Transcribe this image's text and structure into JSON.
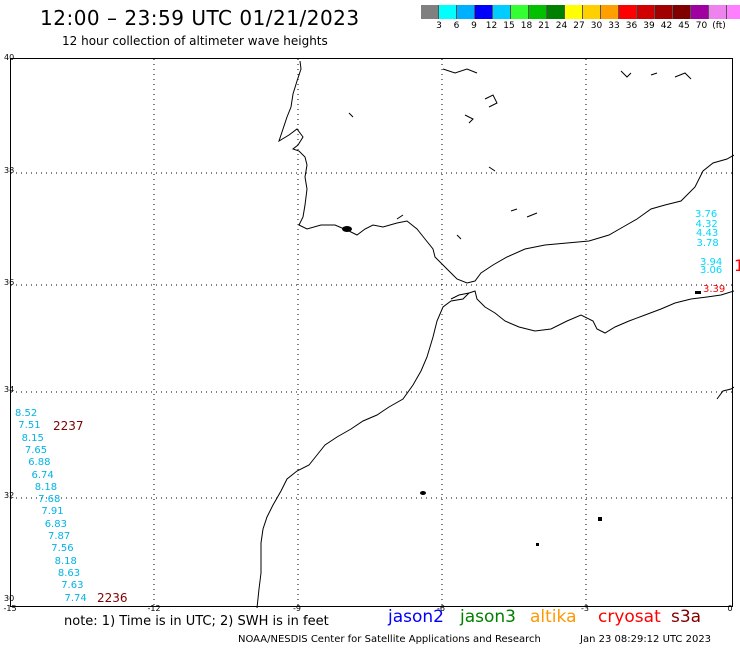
{
  "header": {
    "title": "12:00 – 23:59 UTC 01/21/2023",
    "subtitle": "12 hour collection of altimeter wave heights"
  },
  "legend": {
    "colors": [
      "#808080",
      "#00ffff",
      "#00b0ff",
      "#0000ff",
      "#00ccff",
      "#33ff33",
      "#00c000",
      "#008000",
      "#ffff00",
      "#ffd000",
      "#ffa000",
      "#ff0000",
      "#d00000",
      "#a00000",
      "#800000",
      "#a000a0",
      "#ee82ee",
      "#ff80ff",
      "#000000"
    ],
    "labels": [
      "3",
      "6",
      "9",
      "12",
      "15",
      "18",
      "21",
      "24",
      "27",
      "30",
      "33",
      "36",
      "39",
      "42",
      "45",
      "70",
      "(ft)"
    ]
  },
  "axes": {
    "lat_labels": [
      "40",
      "38",
      "36",
      "34",
      "32",
      "30"
    ],
    "lon_labels": [
      "-15",
      "-12",
      "-9",
      "-6",
      "-3",
      "0"
    ]
  },
  "tracks": {
    "west_values": [
      "8.52",
      "7.51",
      "8.15",
      "7.65",
      "6.88",
      "6.74",
      "8.18",
      "7.68",
      "7.91",
      "6.83",
      "7.87",
      "7.56",
      "8.18",
      "8.63",
      "7.63",
      "7.74"
    ],
    "west_pass_top": "2237",
    "west_pass_bottom": "2236",
    "east_values_upper": [
      "3.76",
      "4.32",
      "4.43",
      "3.78"
    ],
    "east_values_lower": [
      "3.94",
      "3.06"
    ],
    "east_value_coast": "3.39",
    "east_edge_marker": "1"
  },
  "colors": {
    "track_value": "#00b4e6",
    "pass_label": "#800000",
    "east_value": "#00d8ff",
    "east_red": "#ff0000"
  },
  "footer": {
    "note": "note: 1) Time is in UTC; 2) SWH is in feet",
    "satellites": [
      {
        "name": "jason2",
        "color": "#0000ff"
      },
      {
        "name": "jason3",
        "color": "#008000"
      },
      {
        "name": "altika",
        "color": "#ff9900"
      },
      {
        "name": "cryosat",
        "color": "#ff0000"
      },
      {
        "name": "s3a",
        "color": "#800000"
      }
    ],
    "credit": "NOAA/NESDIS Center for Satellite Applications and Research",
    "generated": "Jan 23 08:29:12 UTC 2023"
  }
}
